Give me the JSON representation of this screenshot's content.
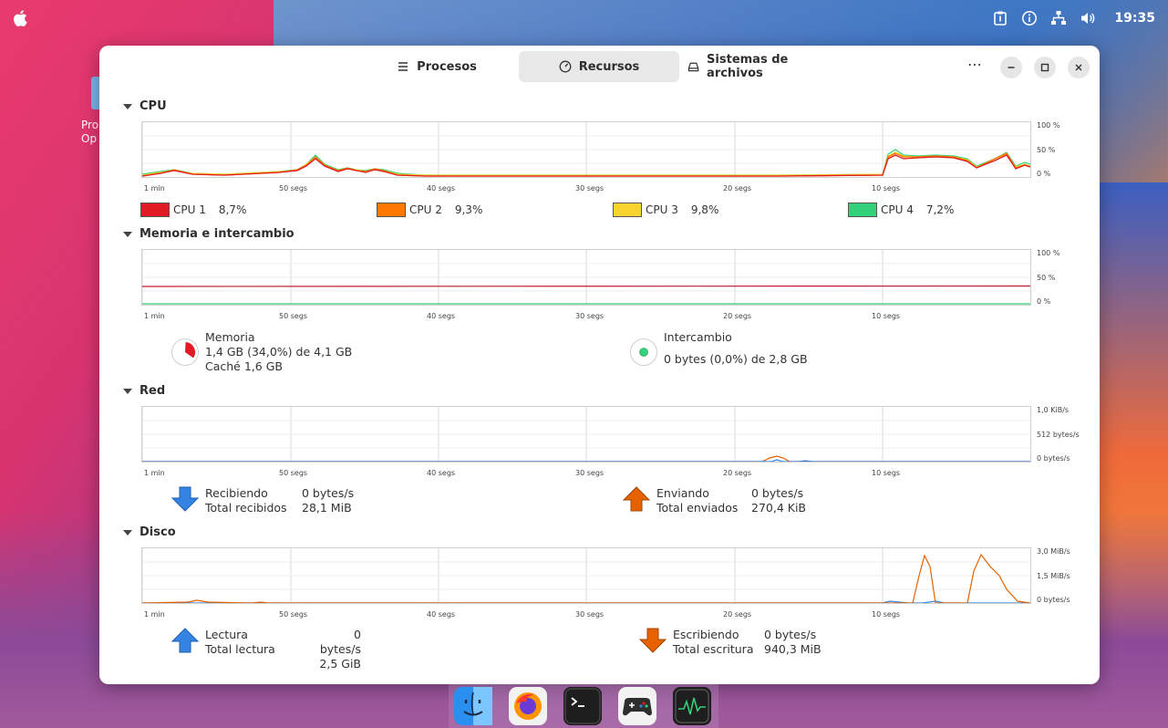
{
  "topbar": {
    "clock": "19:35",
    "icons": [
      "clipboard-icon",
      "info-icon",
      "network-icon",
      "volume-icon"
    ]
  },
  "desktop": {
    "icon_label_line1": "Pro",
    "icon_label_line2": "Op"
  },
  "header": {
    "tabs": [
      {
        "label": "Procesos",
        "icon": "list-icon"
      },
      {
        "label": "Recursos",
        "icon": "gauge-icon",
        "active": true
      },
      {
        "label": "Sistemas de archivos",
        "icon": "drive-icon"
      }
    ],
    "menu_label": "⋯"
  },
  "time_ticks": [
    "1 min",
    "50 segs",
    "40 segs",
    "30 segs",
    "20 segs",
    "10 segs"
  ],
  "cpu": {
    "title": "CPU",
    "y_ticks": [
      "100 %",
      "50 %",
      "0 %"
    ],
    "legend": [
      {
        "name": "CPU 1",
        "value": "8,7%",
        "color": "#e01b24"
      },
      {
        "name": "CPU 2",
        "value": "9,3%",
        "color": "#ff7800"
      },
      {
        "name": "CPU 3",
        "value": "9,8%",
        "color": "#f6d32d"
      },
      {
        "name": "CPU 4",
        "value": "7,2%",
        "color": "#33d17a"
      }
    ]
  },
  "memory": {
    "title": "Memoria e intercambio",
    "y_ticks": [
      "100 %",
      "50 %",
      "0 %"
    ],
    "mem_label": "Memoria",
    "mem_value": "1,4 GB (34,0%) de 4,1 GB",
    "mem_cache": "Caché 1,6 GB",
    "mem_fraction": 0.34,
    "mem_color": "#e01b24",
    "swap_label": "Intercambio",
    "swap_value": "0 bytes (0,0%) de 2,8 GB",
    "swap_color": "#33d17a"
  },
  "network": {
    "title": "Red",
    "y_ticks": [
      "1,0 KiB/s",
      "512 bytes/s",
      "0 bytes/s"
    ],
    "recv_label": "Recibiendo",
    "recv_value": "0 bytes/s",
    "recv_total_label": "Total recibidos",
    "recv_total_value": "28,1 MiB",
    "sent_label": "Enviando",
    "sent_value": "0 bytes/s",
    "sent_total_label": "Total enviados",
    "sent_total_value": "270,4 KiB",
    "recv_color": "#3584e4",
    "sent_color": "#e66100"
  },
  "disk": {
    "title": "Disco",
    "y_ticks": [
      "3,0 MiB/s",
      "1,5 MiB/s",
      "0 bytes/s"
    ],
    "read_label": "Lectura",
    "read_value": "0 bytes/s",
    "read_total_label": "Total lectura",
    "read_total_value": "2,5 GiB",
    "write_label": "Escribiendo",
    "write_value": "0 bytes/s",
    "write_total_label": "Total escritura",
    "write_total_value": "940,3 MiB",
    "read_color": "#3584e4",
    "write_color": "#e66100"
  },
  "dock": {
    "apps": [
      "finder-icon",
      "firefox-icon",
      "terminal-icon",
      "games-icon",
      "system-monitor-icon"
    ]
  }
}
